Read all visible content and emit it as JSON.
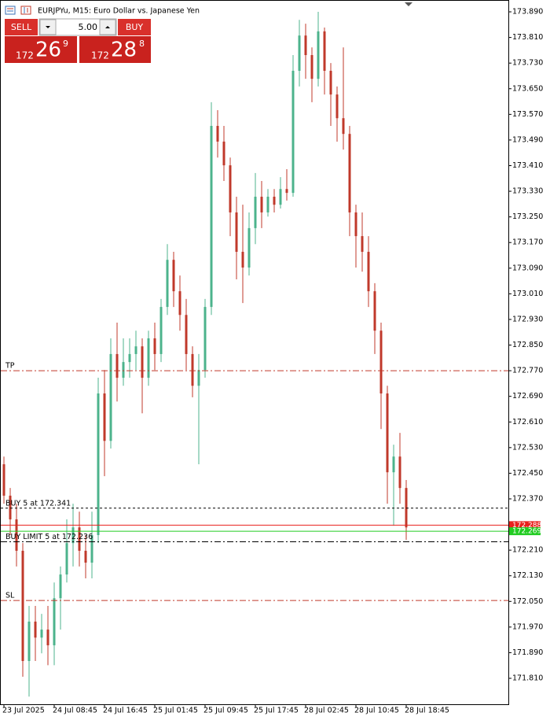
{
  "header": {
    "title": "EURJPYu, M15:  Euro Dollar vs. Japanese Yen"
  },
  "trade_panel": {
    "sell": "SELL",
    "buy": "BUY",
    "volume": "5.00",
    "sell_price": {
      "big_figure": "172",
      "pips": "26",
      "point": "9"
    },
    "buy_price": {
      "big_figure": "172",
      "pips": "28",
      "point": "8"
    }
  },
  "chart_data": {
    "type": "candlestick",
    "categories": [
      "23 Jul 2025",
      null,
      null,
      null,
      null,
      null,
      null,
      null,
      "24 Jul 08:45",
      null,
      null,
      null,
      null,
      null,
      null,
      null,
      "24 Jul 16:45",
      null,
      null,
      null,
      null,
      null,
      null,
      null,
      "25 Jul 01:45",
      null,
      null,
      null,
      null,
      null,
      null,
      null,
      "25 Jul 09:45",
      null,
      null,
      null,
      null,
      null,
      null,
      null,
      "25 Jul 17:45",
      null,
      null,
      null,
      null,
      null,
      null,
      null,
      "28 Jul 02:45",
      null,
      null,
      null,
      null,
      null,
      null,
      null,
      "28 Jul 10:45",
      null,
      null,
      null,
      null,
      null,
      null,
      null,
      "28 Jul 18:45"
    ],
    "open": [
      172.478,
      172.38,
      172.306,
      172.208,
      171.864,
      171.987,
      171.937,
      171.962,
      171.913,
      172.06,
      172.134,
      172.232,
      172.281,
      172.208,
      172.171,
      172.257,
      172.699,
      172.551,
      172.822,
      172.748,
      172.797,
      172.822,
      172.846,
      172.748,
      172.871,
      172.822,
      172.969,
      173.116,
      173.018,
      172.944,
      172.822,
      172.723,
      172.772,
      172.969,
      173.534,
      173.485,
      173.411,
      173.264,
      173.141,
      173.092,
      173.215,
      173.313,
      173.264,
      173.313,
      173.288,
      173.337,
      173.325,
      173.706,
      173.816,
      173.755,
      173.681,
      173.829,
      173.706,
      173.632,
      173.558,
      173.509,
      173.264,
      173.19,
      173.141,
      173.018,
      172.895,
      172.699,
      172.453,
      172.502,
      172.404
    ],
    "high": [
      172.502,
      172.404,
      172.355,
      172.232,
      172.036,
      172.036,
      172.011,
      172.036,
      172.109,
      172.159,
      172.306,
      172.355,
      172.33,
      172.257,
      172.33,
      172.748,
      172.772,
      172.871,
      172.92,
      172.871,
      172.871,
      172.895,
      172.871,
      172.895,
      172.92,
      172.994,
      173.165,
      173.141,
      173.067,
      172.994,
      172.846,
      172.822,
      172.994,
      173.608,
      173.583,
      173.534,
      173.435,
      173.313,
      173.288,
      173.264,
      173.387,
      173.362,
      173.337,
      173.337,
      173.374,
      173.399,
      173.755,
      173.865,
      173.853,
      173.779,
      173.89,
      173.841,
      173.73,
      173.657,
      173.779,
      173.534,
      173.288,
      173.264,
      173.19,
      173.043,
      172.92,
      172.723,
      172.539,
      172.576,
      172.429
    ],
    "low": [
      172.355,
      172.257,
      172.159,
      171.815,
      171.753,
      171.864,
      171.888,
      171.851,
      171.851,
      171.962,
      172.109,
      172.159,
      172.159,
      172.122,
      172.122,
      172.232,
      172.441,
      172.527,
      172.674,
      172.723,
      172.748,
      172.772,
      172.637,
      172.723,
      172.772,
      172.797,
      172.944,
      172.969,
      172.895,
      172.772,
      172.687,
      172.478,
      172.748,
      172.944,
      173.435,
      173.362,
      173.19,
      173.055,
      172.981,
      173.067,
      173.165,
      173.215,
      173.251,
      173.264,
      173.276,
      173.301,
      173.313,
      173.657,
      173.681,
      173.608,
      173.657,
      173.632,
      173.534,
      173.485,
      173.46,
      173.19,
      173.092,
      173.079,
      172.969,
      172.822,
      172.588,
      172.355,
      172.286,
      172.355,
      172.242
    ],
    "close": [
      172.38,
      172.306,
      172.208,
      171.864,
      171.987,
      171.937,
      171.962,
      171.913,
      172.06,
      172.134,
      172.232,
      172.281,
      172.208,
      172.171,
      172.257,
      172.699,
      172.551,
      172.822,
      172.748,
      172.797,
      172.822,
      172.846,
      172.748,
      172.871,
      172.822,
      172.969,
      173.116,
      173.018,
      172.944,
      172.822,
      172.723,
      172.772,
      172.969,
      173.534,
      173.485,
      173.411,
      173.264,
      173.141,
      173.092,
      173.215,
      173.313,
      173.264,
      173.313,
      173.288,
      173.337,
      173.325,
      173.706,
      173.816,
      173.755,
      173.681,
      173.829,
      173.706,
      173.632,
      173.558,
      173.509,
      173.264,
      173.19,
      173.141,
      173.018,
      172.895,
      172.699,
      172.453,
      172.502,
      172.404,
      172.281
    ],
    "bull_color": "#4cb38c",
    "bear_color": "#c0392b",
    "ylim": [
      171.729,
      173.922
    ],
    "yticks": [
      {
        "value": 173.89,
        "label": "173.890"
      },
      {
        "value": 173.81,
        "label": "173.810"
      },
      {
        "value": 173.73,
        "label": "173.730"
      },
      {
        "value": 173.65,
        "label": "173.650"
      },
      {
        "value": 173.57,
        "label": "173.570"
      },
      {
        "value": 173.49,
        "label": "173.490"
      },
      {
        "value": 173.41,
        "label": "173.410"
      },
      {
        "value": 173.33,
        "label": "173.330"
      },
      {
        "value": 173.25,
        "label": "173.250"
      },
      {
        "value": 173.17,
        "label": "173.170"
      },
      {
        "value": 173.09,
        "label": "173.090"
      },
      {
        "value": 173.01,
        "label": "173.010"
      },
      {
        "value": 172.93,
        "label": "172.930"
      },
      {
        "value": 172.85,
        "label": "172.850"
      },
      {
        "value": 172.77,
        "label": "172.770"
      },
      {
        "value": 172.69,
        "label": "172.690"
      },
      {
        "value": 172.61,
        "label": "172.610"
      },
      {
        "value": 172.53,
        "label": "172.530"
      },
      {
        "value": 172.45,
        "label": "172.450"
      },
      {
        "value": 172.37,
        "label": "172.370"
      },
      {
        "value": 172.21,
        "label": "172.210"
      },
      {
        "value": 172.13,
        "label": "172.130"
      },
      {
        "value": 172.05,
        "label": "172.050"
      },
      {
        "value": 171.97,
        "label": "171.970"
      },
      {
        "value": 171.89,
        "label": "171.890"
      },
      {
        "value": 171.81,
        "label": "171.810"
      }
    ],
    "grid": false,
    "orders": [
      {
        "label": "TP",
        "price": 172.77,
        "color": "#c0392b",
        "dash": "8 3 2 3"
      },
      {
        "label": "BUY 5 at 172.341",
        "price": 172.341,
        "color": "#000000",
        "dash": "3 3"
      },
      {
        "label": "BUY LIMIT 5 at 172.236",
        "price": 172.236,
        "color": "#000000",
        "dash": "8 3 2 3"
      },
      {
        "label": "SL",
        "price": 172.053,
        "color": "#c0392b",
        "dash": "8 3 2 3"
      }
    ],
    "price_lines": [
      {
        "price": 172.288,
        "color": "#e8201c"
      },
      {
        "price": 172.269,
        "color": "#22cc22"
      }
    ]
  }
}
